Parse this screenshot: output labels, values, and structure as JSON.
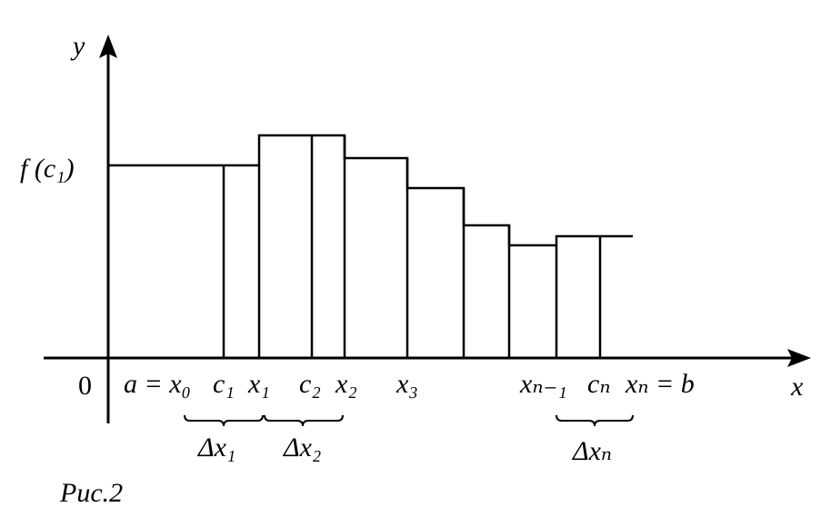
{
  "figure": {
    "caption": "Рис.2",
    "ink_color": "#000000",
    "background": "#ffffff"
  },
  "axes": {
    "x_label": "x",
    "y_label": "y",
    "origin_label": "0",
    "y_tick_label": "f (c₁)"
  },
  "x_points": [
    {
      "label": "a = x₀"
    },
    {
      "label": "c₁"
    },
    {
      "label": "x₁"
    },
    {
      "label": "c₂"
    },
    {
      "label": "x₂"
    },
    {
      "label": "x₃"
    },
    {
      "label": "xₙ₋₁"
    },
    {
      "label": "cₙ"
    },
    {
      "label": "xₙ = b"
    }
  ],
  "intervals": [
    {
      "label": "Δx₁"
    },
    {
      "label": "Δx₂"
    },
    {
      "label": "Δxₙ"
    }
  ]
}
